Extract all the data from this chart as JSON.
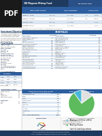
{
  "bg_color": "#f0f0f0",
  "page_bg": "#ffffff",
  "header_dark": "#1e3a5f",
  "header_blue": "#2c5f8a",
  "table_header_blue": "#2d5fa0",
  "row_alt": "#dce8f5",
  "row_normal": "#ffffff",
  "pdf_bg": "#1a1a1a",
  "pie_colors": [
    "#4ab8d8",
    "#5dba5d",
    "#e0e0e0"
  ],
  "pie_values": [
    10,
    75,
    15
  ],
  "bottom_bar_color": "#1e3a5f",
  "text_dark": "#222222",
  "text_blue": "#1e3a5f",
  "risk_colors": [
    "#3b82c4",
    "#5aaa5a",
    "#f0c040",
    "#e07820",
    "#d03030"
  ]
}
